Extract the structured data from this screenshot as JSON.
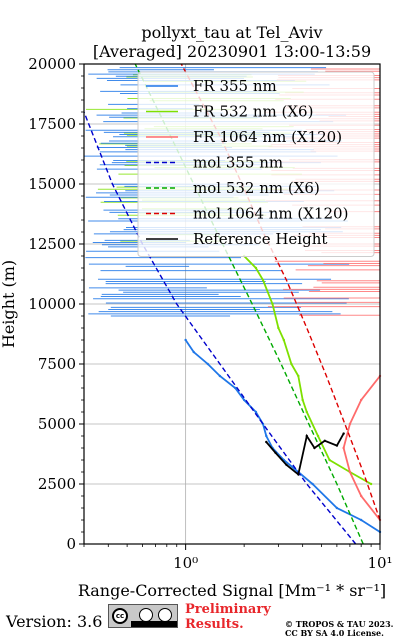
{
  "chart_data": {
    "type": "line",
    "title_line1": "pollyxt_tau at Tel_Aviv",
    "title_line2": "[Averaged] 20230901 13:00-13:59",
    "xlabel": "Range-Corrected Signal [Mm⁻¹ * sr⁻¹]",
    "ylabel": "Height (m)",
    "xscale": "log",
    "xlim": [
      0.3,
      10
    ],
    "ylim": [
      0,
      20000
    ],
    "xticks": [
      1,
      10
    ],
    "xtick_labels": [
      "10⁰",
      "10¹"
    ],
    "yticks": [
      0,
      2500,
      5000,
      7500,
      10000,
      12500,
      15000,
      17500,
      20000
    ],
    "grid": true,
    "legend_position": "top-right",
    "series": [
      {
        "name": "FR 355 nm",
        "color": "#1f77e8",
        "style": "solid",
        "x": [
          10,
          8,
          6,
          4.5,
          3.8,
          3.2,
          2.8,
          2.6,
          2.5,
          2.3,
          2.0,
          1.8,
          1.5,
          1.3,
          1.1,
          1.0
        ],
        "y": [
          500,
          1000,
          1500,
          2500,
          3000,
          3500,
          4000,
          4500,
          5000,
          5500,
          6000,
          6500,
          7000,
          7500,
          8000,
          8500
        ]
      },
      {
        "name": "FR 532 nm (X6)",
        "color": "#7ee000",
        "style": "solid",
        "x": [
          9,
          7,
          5.5,
          4.8,
          4.2,
          4.0,
          3.8,
          3.5,
          3.2,
          3.0,
          2.8,
          2.5,
          2.3,
          2.0
        ],
        "y": [
          2500,
          3000,
          3500,
          4500,
          5500,
          6000,
          7000,
          7500,
          8500,
          9000,
          10000,
          11000,
          11500,
          12000
        ]
      },
      {
        "name": "FR 1064 nm (X120)",
        "color": "#ff6b6b",
        "style": "solid",
        "x": [
          10,
          8,
          7,
          6.5,
          7,
          8,
          10
        ],
        "y": [
          1000,
          2000,
          3000,
          4000,
          5000,
          6000,
          7000
        ]
      },
      {
        "name": "mol 355 nm",
        "color": "#0000cc",
        "style": "dashed",
        "x": [
          7.5,
          4.2,
          2.5,
          1.5,
          0.9,
          0.6,
          0.42,
          0.3
        ],
        "y": [
          0,
          2500,
          5000,
          7500,
          10000,
          12500,
          15000,
          18000
        ]
      },
      {
        "name": "mol 532 nm (X6)",
        "color": "#00aa00",
        "style": "dashed",
        "x": [
          8.2,
          6.0,
          4.3,
          3.1,
          2.2,
          1.55,
          1.1,
          0.78,
          0.55
        ],
        "y": [
          0,
          2500,
          5000,
          7500,
          10000,
          12500,
          15000,
          17500,
          20000
        ]
      },
      {
        "name": "mol 1064 nm (X120)",
        "color": "#dd0000",
        "style": "dashed",
        "x": [
          10,
          8.2,
          6.6,
          5.3,
          4.2,
          3.3,
          2.5,
          1.95,
          1.5,
          0.95
        ],
        "y": [
          1000,
          3000,
          5000,
          7000,
          9000,
          11000,
          13000,
          15000,
          17000,
          20000
        ]
      },
      {
        "name": "Reference Height",
        "color": "#000000",
        "style": "solid",
        "x": [
          2.6,
          2.9,
          3.3,
          3.8,
          4.2,
          4.6,
          5.2,
          6.0,
          6.5
        ],
        "y": [
          4250,
          3800,
          3300,
          2900,
          4500,
          4000,
          4300,
          4100,
          4600
        ]
      }
    ]
  },
  "footer": {
    "version": "Version: 3.6",
    "prelim_line1": "Preliminary",
    "prelim_line2": "Results.",
    "copyright_line1": "© TROPOS & TAU 2023.",
    "copyright_line2": "CC BY SA 4.0 License."
  }
}
